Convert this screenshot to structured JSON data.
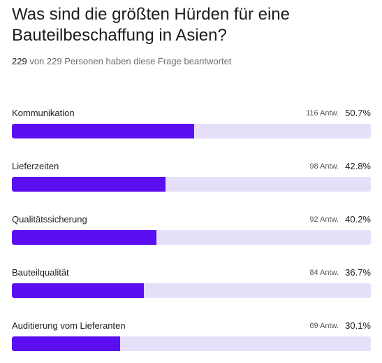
{
  "question": {
    "title": "Was sind die größten Hürden für eine Bauteilbeschaffung in Asien?",
    "answered_count": "229",
    "answered_rest": "von 229 Personen haben diese Frage beantwortet"
  },
  "colors": {
    "bar_fill": "#5b0ef0",
    "bar_track": "#e6dff9"
  },
  "answers": [
    {
      "label": "Kommunikation",
      "count": "116 Antw.",
      "percent": "50.7%",
      "value": 50.7
    },
    {
      "label": "Lieferzeiten",
      "count": "98 Antw.",
      "percent": "42.8%",
      "value": 42.8
    },
    {
      "label": "Qualitätssicherung",
      "count": "92 Antw.",
      "percent": "40.2%",
      "value": 40.2
    },
    {
      "label": "Bauteilqualität",
      "count": "84 Antw.",
      "percent": "36.7%",
      "value": 36.7
    },
    {
      "label": "Auditierung vom Lieferanten",
      "count": "69 Antw.",
      "percent": "30.1%",
      "value": 30.1
    }
  ]
}
